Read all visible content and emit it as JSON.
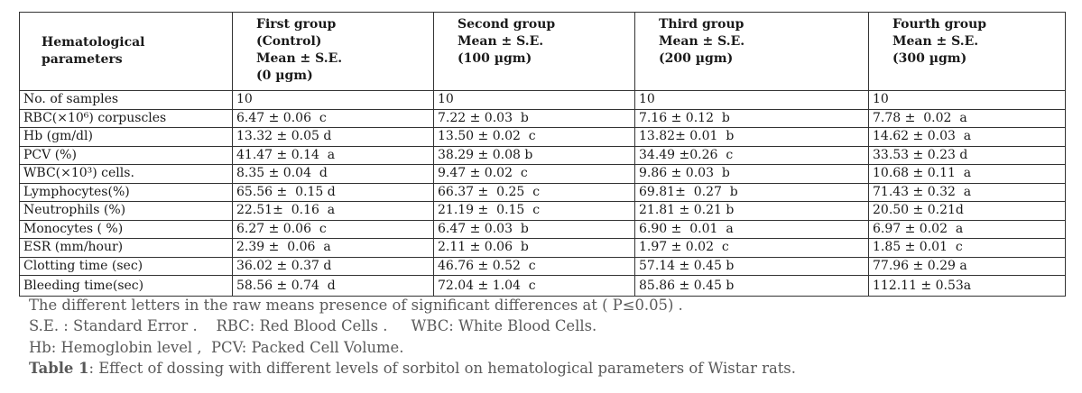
{
  "table": {
    "headers": [
      "Hematological\nparameters",
      "First group\n(Control)\nMean ± S.E.\n(0 µgm)",
      "Second group\nMean ± S.E.\n(100 µgm)",
      "Third group\nMean ± S.E.\n(200 µgm)",
      "Fourth group\nMean ± S.E.\n(300 µgm)"
    ],
    "rows": [
      [
        "No. of samples",
        "10",
        "10",
        "10",
        "10"
      ],
      [
        "RBC(×10⁶) corpuscles",
        "6.47 ± 0.06  c",
        "7.22 ± 0.03  b",
        "7.16 ± 0.12  b",
        "7.78 ±  0.02  a"
      ],
      [
        "Hb (gm/dl)",
        "13.32 ± 0.05 d",
        "13.50 ± 0.02  c",
        "13.82± 0.01  b",
        "14.62 ± 0.03  a"
      ],
      [
        "PCV (%)",
        "41.47 ± 0.14  a",
        "38.29 ± 0.08 b",
        "34.49 ±0.26  c",
        "33.53 ± 0.23 d"
      ],
      [
        "WBC(×10³) cells.",
        "8.35 ± 0.04  d",
        "9.47 ± 0.02  c",
        "9.86 ± 0.03  b",
        "10.68 ± 0.11  a"
      ],
      [
        "Lymphocytes(%)",
        "65.56 ±  0.15 d",
        "66.37 ±  0.25  c",
        "69.81±  0.27  b",
        "71.43 ± 0.32  a"
      ],
      [
        "Neutrophils (%)",
        "22.51±  0.16  a",
        "21.19 ±  0.15  c",
        "21.81 ± 0.21 b",
        "20.50 ± 0.21d"
      ],
      [
        "Monocytes ( %)",
        "6.27 ± 0.06  c",
        "6.47 ± 0.03  b",
        "6.90 ±  0.01  a",
        "6.97 ± 0.02  a"
      ],
      [
        "ESR (mm/hour)",
        "2.39 ±  0.06  a",
        "2.11 ± 0.06  b",
        "1.97 ± 0.02  c",
        "1.85 ± 0.01  c"
      ],
      [
        "Clotting time (sec)",
        "36.02 ± 0.37 d",
        "46.76 ± 0.52  c",
        "57.14 ± 0.45 b",
        "77.96 ± 0.29 a"
      ],
      [
        "Bleeding time(sec)",
        "58.56 ± 0.74  d",
        "72.04 ± 1.04  c",
        "85.86 ± 0.45 b",
        "112.11 ± 0.53a"
      ]
    ]
  },
  "notes": {
    "line1": "The different letters in the raw means presence of significant differences at ( P≤0.05) .",
    "line2": "S.E. : Standard Error .    RBC: Red Blood Cells .     WBC: White Blood Cells.",
    "line3": "Hb: Hemoglobin level ,  PCV: Packed Cell Volume.",
    "caption_label": "Table 1",
    "caption_text": ": Effect of dossing with different levels of sorbitol on hematological parameters of Wistar rats."
  }
}
